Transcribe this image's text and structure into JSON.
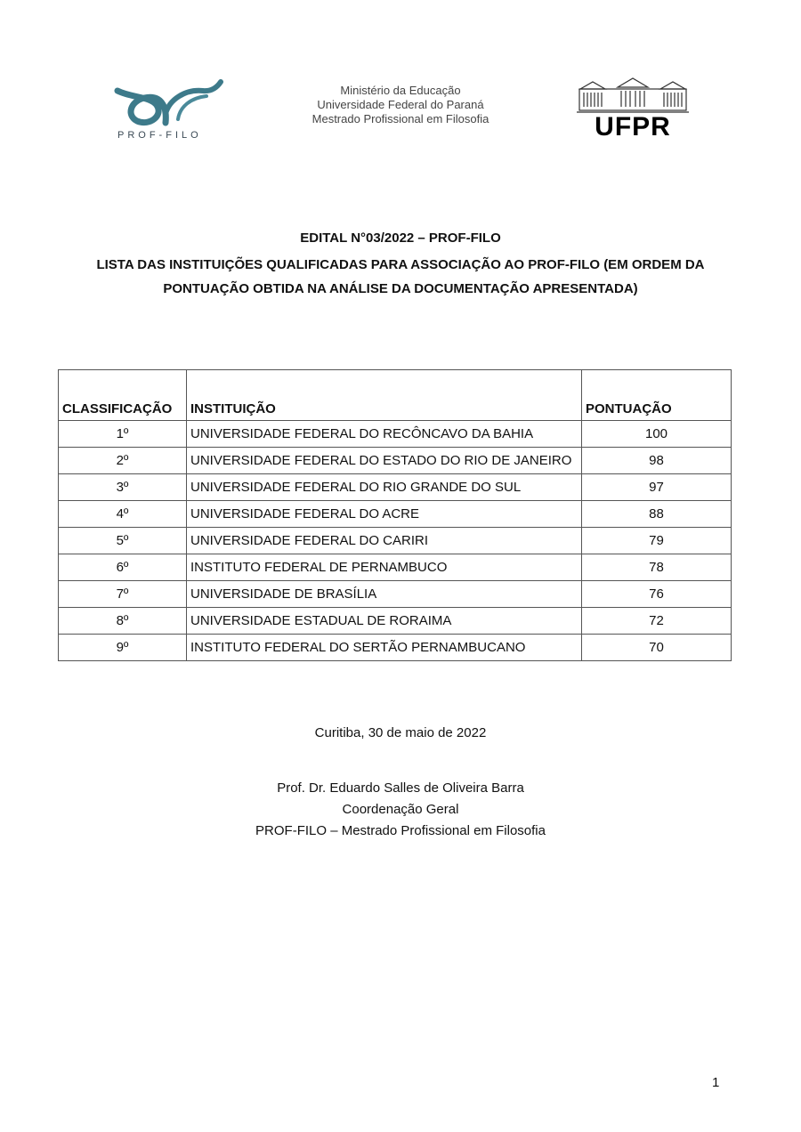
{
  "header": {
    "left_logo_text": "PROF-FILO",
    "center_lines": [
      "Ministério da Educação",
      "Universidade Federal do Paraná",
      "Mestrado Profissional em Filosofia"
    ],
    "right_logo_text": "UFPR",
    "colors": {
      "prof_filo_teal": "#3d7a8a"
    }
  },
  "title": {
    "line1": "EDITAL N°03/2022 – PROF-FILO",
    "line2": "LISTA DAS INSTITUIÇÕES QUALIFICADAS PARA ASSOCIAÇÃO AO PROF-FILO (EM ORDEM DA",
    "line3": "PONTUAÇÃO OBTIDA NA ANÁLISE DA DOCUMENTAÇÃO APRESENTADA)"
  },
  "table": {
    "headers": [
      "CLASSIFICAÇÃO",
      "INSTITUIÇÃO",
      "PONTUAÇÃO"
    ],
    "rows": [
      [
        "1º",
        "UNIVERSIDADE FEDERAL DO RECÔNCAVO DA BAHIA",
        "100"
      ],
      [
        "2º",
        "UNIVERSIDADE FEDERAL DO ESTADO DO RIO DE JANEIRO",
        "98"
      ],
      [
        "3º",
        "UNIVERSIDADE FEDERAL DO RIO GRANDE DO SUL",
        "97"
      ],
      [
        "4º",
        "UNIVERSIDADE FEDERAL DO ACRE",
        "88"
      ],
      [
        "5º",
        "UNIVERSIDADE FEDERAL DO CARIRI",
        "79"
      ],
      [
        "6º",
        "INSTITUTO FEDERAL DE PERNAMBUCO",
        "78"
      ],
      [
        "7º",
        "UNIVERSIDADE DE BRASÍLIA",
        "76"
      ],
      [
        "8º",
        "UNIVERSIDADE ESTADUAL DE RORAIMA",
        "72"
      ],
      [
        "9º",
        "INSTITUTO FEDERAL DO SERTÃO PERNAMBUCANO",
        "70"
      ]
    ]
  },
  "footer": {
    "place_date": "Curitiba, 30 de maio de 2022",
    "signer": "Prof. Dr. Eduardo Salles de Oliveira Barra",
    "role": "Coordenação Geral",
    "program": "PROF-FILO – Mestrado Profissional em Filosofia"
  },
  "page_number": "1"
}
